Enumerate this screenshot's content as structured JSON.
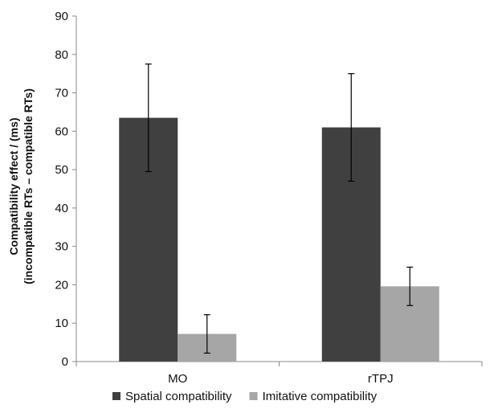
{
  "chart_data": {
    "type": "bar",
    "title": "",
    "xlabel": "",
    "ylabel_lines": [
      "Compatibility effect / (ms)",
      "(incompatible RTs – compatible RTs)"
    ],
    "categories": [
      "MO",
      "rTPJ"
    ],
    "series": [
      {
        "name": "Spatial compatibility",
        "color": "#404040",
        "values": [
          63.5,
          61
        ],
        "errors": [
          14,
          14
        ]
      },
      {
        "name": "Imitative compatibility",
        "color": "#a6a6a6",
        "values": [
          7.2,
          19.6
        ],
        "errors": [
          5,
          5
        ]
      }
    ],
    "ylim": [
      0,
      90
    ],
    "yticks": [
      0,
      10,
      20,
      30,
      40,
      50,
      60,
      70,
      80,
      90
    ],
    "grid": false,
    "legend_position": "bottom"
  }
}
